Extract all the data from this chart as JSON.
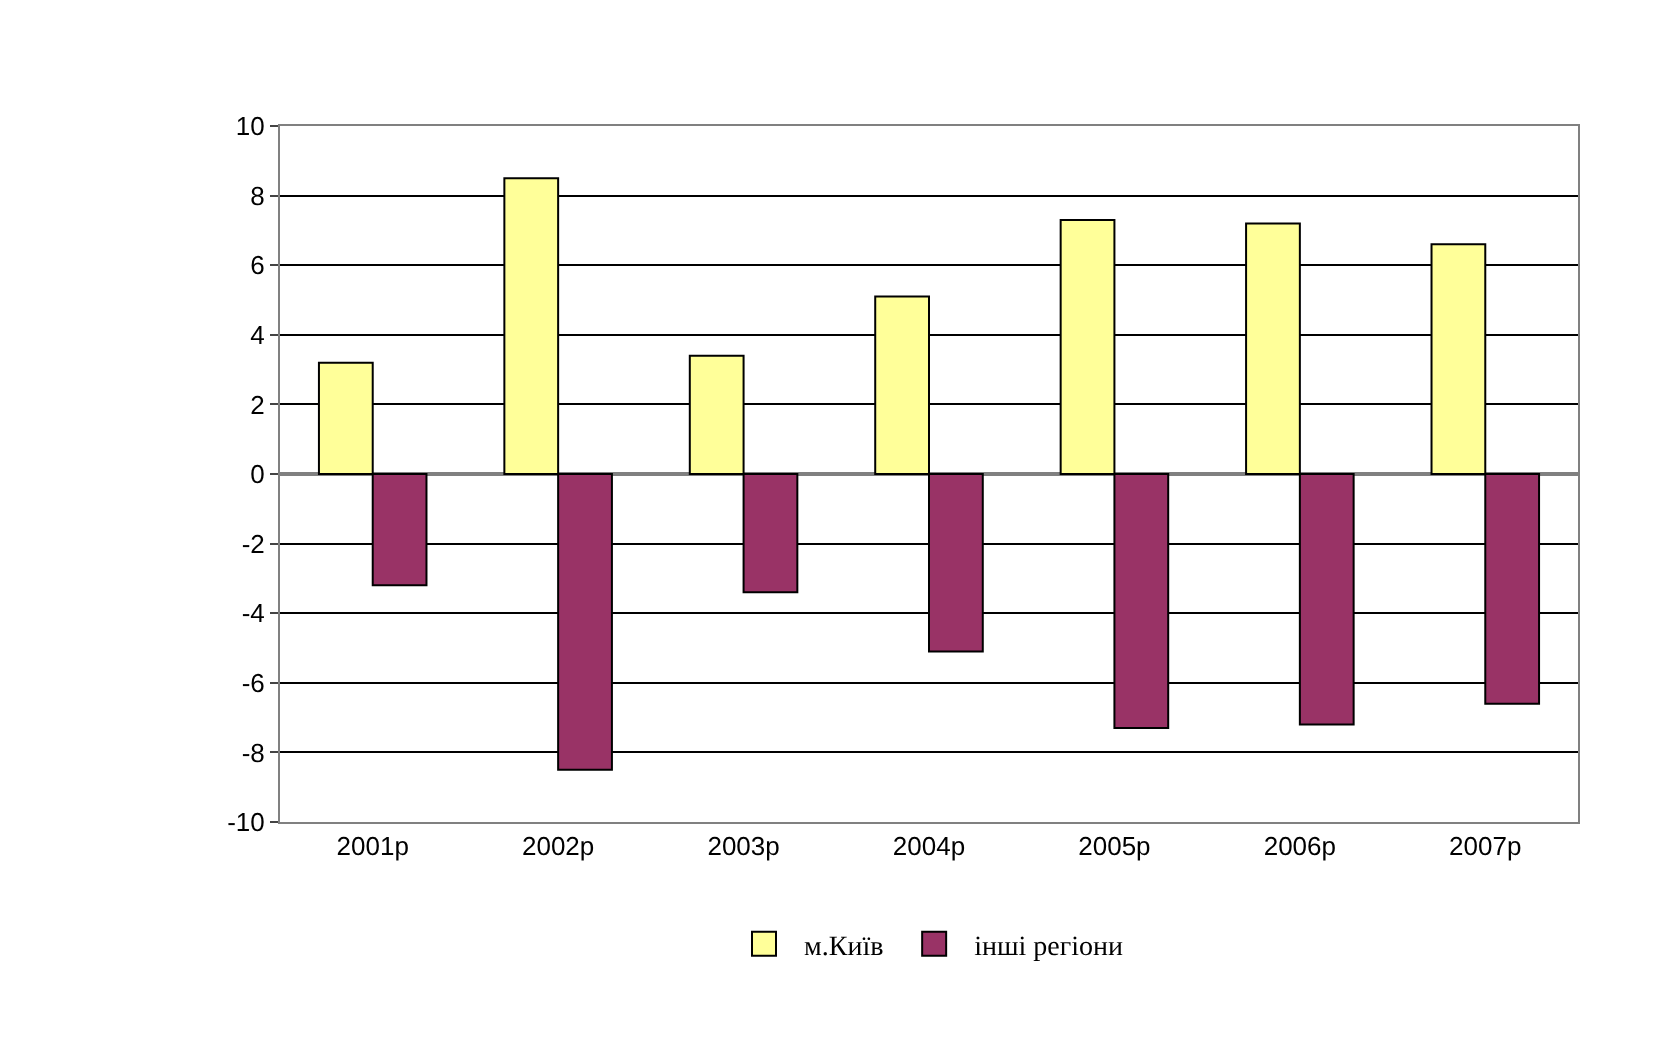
{
  "chart_data": {
    "type": "bar",
    "categories": [
      "2001р",
      "2002р",
      "2003р",
      "2004р",
      "2005р",
      "2006р",
      "2007р"
    ],
    "series": [
      {
        "name": "м.Київ",
        "color": "#ffff99",
        "values": [
          3.2,
          8.5,
          3.4,
          5.1,
          7.3,
          7.2,
          6.6
        ]
      },
      {
        "name": "інші регіони",
        "color": "#993366",
        "values": [
          -3.2,
          -8.5,
          -3.4,
          -5.1,
          -7.3,
          -7.2,
          -6.6
        ]
      }
    ],
    "ylim": [
      -10,
      10
    ],
    "yticks": [
      -10,
      -8,
      -6,
      -4,
      -2,
      0,
      2,
      4,
      6,
      8,
      10
    ],
    "grid": "y",
    "legend": "bottom"
  }
}
